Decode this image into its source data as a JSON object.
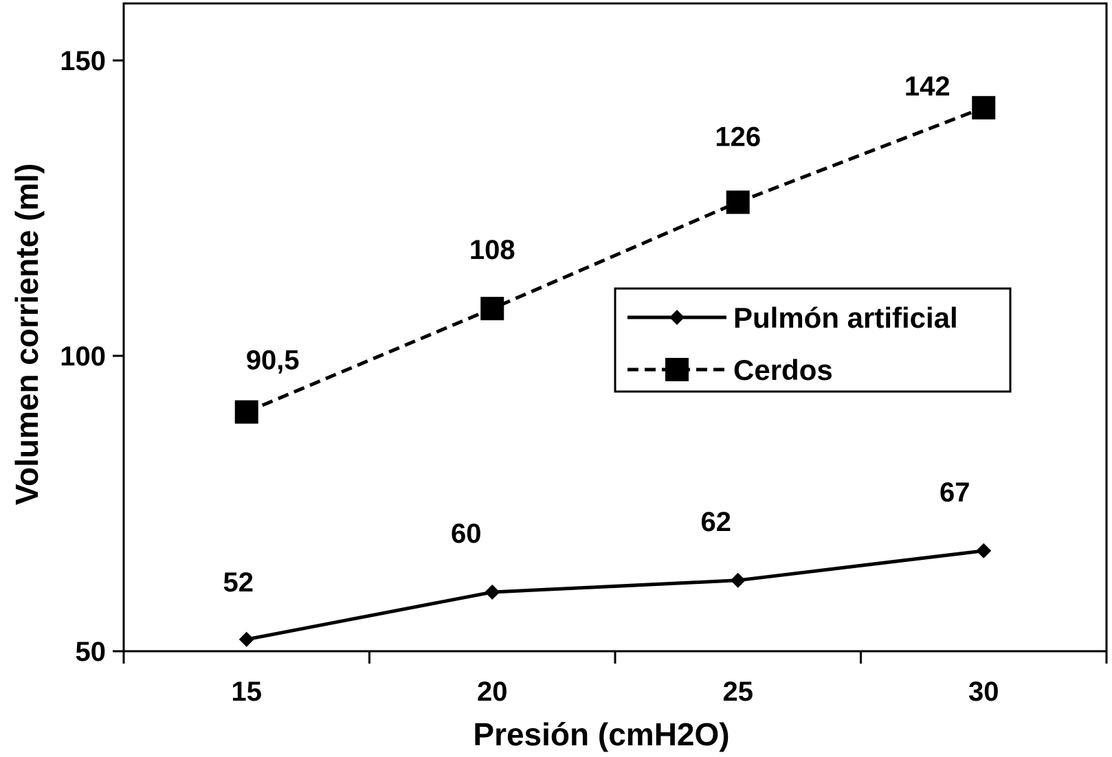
{
  "chart_data": {
    "type": "line",
    "title": "",
    "xlabel": "Presión (cmH2O)",
    "ylabel": "Volumen corriente (ml)",
    "categories": [
      "15",
      "20",
      "25",
      "30"
    ],
    "ylim": [
      50,
      160
    ],
    "yticks": [
      "50",
      "100",
      "150"
    ],
    "grid": false,
    "legend_position": "right-middle",
    "series": [
      {
        "name": "Pulmón artificial",
        "values": [
          52,
          60,
          62,
          67
        ],
        "value_labels": [
          "52",
          "60",
          "62",
          "67"
        ],
        "line_style": "solid",
        "marker": "diamond",
        "color": "#000000"
      },
      {
        "name": "Cerdos",
        "values": [
          90.5,
          108,
          126,
          142
        ],
        "value_labels": [
          "90,5",
          "108",
          "126",
          "142"
        ],
        "line_style": "dashed",
        "marker": "square",
        "color": "#000000"
      }
    ]
  }
}
